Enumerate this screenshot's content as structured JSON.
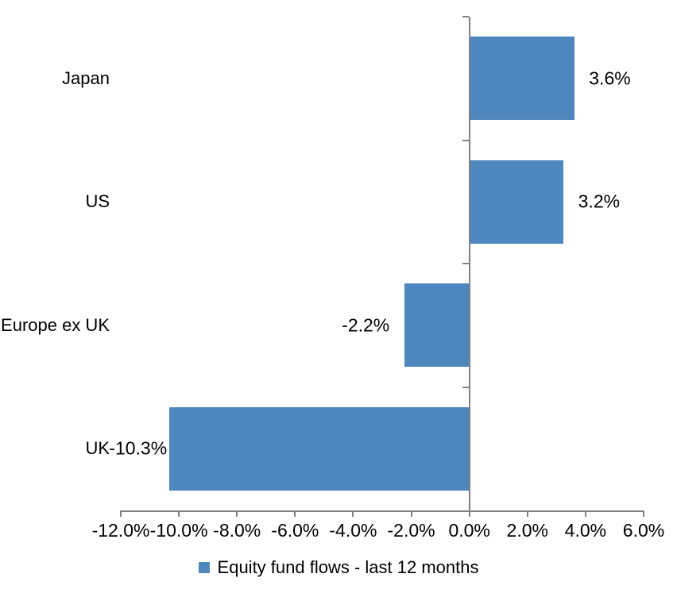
{
  "chart_data": {
    "type": "bar",
    "orientation": "horizontal",
    "title": "",
    "categories": [
      "Japan",
      "US",
      "Europe ex UK",
      "UK"
    ],
    "series": [
      {
        "name": "Equity fund flows - last 12 months",
        "values": [
          3.6,
          3.2,
          -2.2,
          -10.3
        ]
      }
    ],
    "data_labels": [
      "3.6%",
      "3.2%",
      "-2.2%",
      "-10.3%"
    ],
    "xlim": [
      -12,
      6
    ],
    "x_ticks": [
      {
        "value": -12,
        "label": "-12.0%"
      },
      {
        "value": -10,
        "label": "-10.0%"
      },
      {
        "value": -8,
        "label": "-8.0%"
      },
      {
        "value": -6,
        "label": "-6.0%"
      },
      {
        "value": -4,
        "label": "-4.0%"
      },
      {
        "value": -2,
        "label": "-2.0%"
      },
      {
        "value": 0,
        "label": "0.0%"
      },
      {
        "value": 2,
        "label": "2.0%"
      },
      {
        "value": 4,
        "label": "4.0%"
      },
      {
        "value": 6,
        "label": "6.0%"
      }
    ],
    "grid": false,
    "legend": {
      "label": "Equity fund flows - last 12 months",
      "position": "bottom",
      "marker": "square"
    },
    "colors": {
      "bar": "#4E86BE",
      "axis": "#808080",
      "text": "#000000",
      "background": "#FFFFFF"
    }
  }
}
